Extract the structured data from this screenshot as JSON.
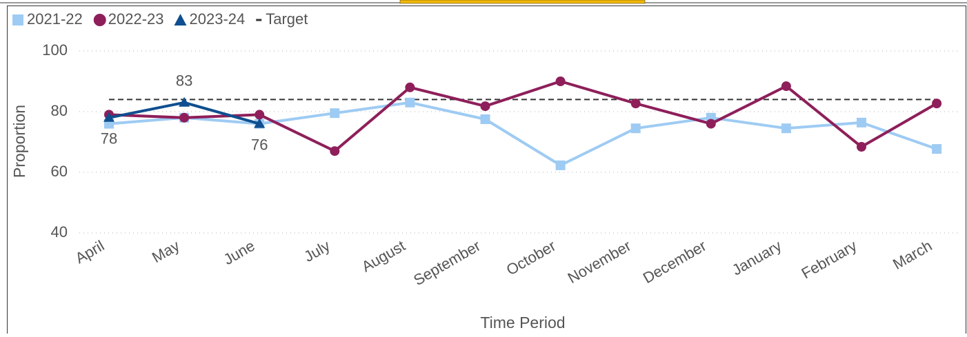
{
  "chart_data": {
    "type": "line",
    "x_label": "Time Period",
    "y_label": "Proportion",
    "legend_position": "top-left",
    "grid": true,
    "categories": [
      "April",
      "May",
      "June",
      "July",
      "August",
      "September",
      "October",
      "November",
      "December",
      "January",
      "February",
      "March"
    ],
    "ylim": [
      40,
      100
    ],
    "yticks": [
      40,
      60,
      80,
      100
    ],
    "series": [
      {
        "name": "2021-22",
        "color": "#9ecbf3",
        "marker": "square",
        "values": [
          76,
          78,
          76,
          79.5,
          83,
          77.5,
          62.3,
          74.5,
          78,
          74.5,
          76.4,
          67.7
        ]
      },
      {
        "name": "2022-23",
        "color": "#8e1f5a",
        "marker": "circle",
        "values": [
          79,
          78,
          79,
          67,
          88,
          81.8,
          90,
          82.7,
          76,
          88.4,
          68.4,
          82.7
        ]
      },
      {
        "name": "2023-24",
        "color": "#0f4f8f",
        "marker": "triangle",
        "data_labels": true,
        "values": [
          78,
          83,
          76,
          null,
          null,
          null,
          null,
          null,
          null,
          null,
          null,
          null
        ]
      }
    ],
    "target": {
      "name": "Target",
      "value": 84,
      "color": "#333333"
    }
  }
}
